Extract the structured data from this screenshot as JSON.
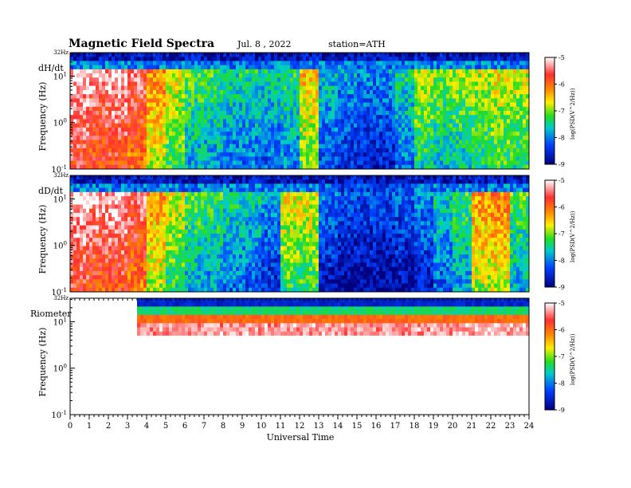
{
  "header": {
    "title": "Magnetic  Field  Spectra",
    "date": "Jul.  8  , 2022",
    "station": "station=ATH"
  },
  "colorbar": {
    "label": "log(PSD(V^2/Hz))",
    "ticks": [
      "-5",
      "-6",
      "-7",
      "-8",
      "-9"
    ],
    "colors": [
      "#ffffff",
      "#ff2a2a",
      "#ff8800",
      "#ffee00",
      "#22dd22",
      "#00cccc",
      "#0040ff",
      "#000080"
    ]
  },
  "chart_data": [
    {
      "type": "heatmap",
      "panel_label": "dH/dt",
      "ylabel": "Frequency  (Hz)",
      "top_label": "32Hz",
      "ytick_labels": [
        "10^1",
        "10^0",
        "10^-1"
      ],
      "x": [
        0,
        1,
        2,
        3,
        4,
        5,
        6,
        7,
        8,
        9,
        10,
        11,
        12,
        13,
        14,
        15,
        16,
        17,
        18,
        19,
        20,
        21,
        22,
        23,
        24
      ],
      "xlim": [
        0,
        24
      ],
      "ylog": true,
      "ylim": [
        0.1,
        32
      ],
      "zlim": [
        -9,
        -5
      ],
      "value_estimates": [
        -5.2,
        -5.4,
        -5.3,
        -5.6,
        -6.3,
        -6.8,
        -7.3,
        -7.4,
        -7.6,
        -7.6,
        -7.7,
        -7.5,
        -6.6,
        -7.8,
        -8.0,
        -8.1,
        -8.1,
        -7.6,
        -7.0,
        -7.2,
        -7.1,
        -7.0,
        -6.8,
        -6.9
      ]
    },
    {
      "type": "heatmap",
      "panel_label": "dD/dt",
      "ylabel": "Frequency  (Hz)",
      "top_label": "32Hz",
      "ytick_labels": [
        "10^1",
        "10^0",
        "10^-1"
      ],
      "x": [
        0,
        1,
        2,
        3,
        4,
        5,
        6,
        7,
        8,
        9,
        10,
        11,
        12,
        13,
        14,
        15,
        16,
        17,
        18,
        19,
        20,
        21,
        22,
        23,
        24
      ],
      "xlim": [
        0,
        24
      ],
      "ylog": true,
      "ylim": [
        0.1,
        32
      ],
      "zlim": [
        -9,
        -5
      ],
      "value_estimates": [
        -5.2,
        -5.4,
        -5.3,
        -5.6,
        -6.4,
        -6.9,
        -7.3,
        -7.4,
        -7.6,
        -7.7,
        -8.0,
        -6.8,
        -6.8,
        -8.2,
        -8.4,
        -8.4,
        -8.4,
        -8.3,
        -8.1,
        -7.7,
        -7.4,
        -6.4,
        -6.3,
        -7.3
      ]
    },
    {
      "type": "heatmap",
      "panel_label": "Riometer",
      "ylabel": "Frequency  (Hz)",
      "top_label": "32Hz",
      "ytick_labels": [
        "10^1",
        "10^0",
        "10^-1"
      ],
      "x": [
        0,
        1,
        2,
        3,
        4,
        5,
        6,
        7,
        8,
        9,
        10,
        11,
        12,
        13,
        14,
        15,
        16,
        17,
        18,
        19,
        20,
        21,
        22,
        23,
        24
      ],
      "xlim": [
        0,
        24
      ],
      "ylog": true,
      "ylim": [
        0.1,
        32
      ],
      "zlim": [
        -9,
        -5
      ],
      "data_gaps": [
        [
          0,
          3.5
        ]
      ],
      "xlabel": "Universal Time"
    }
  ]
}
